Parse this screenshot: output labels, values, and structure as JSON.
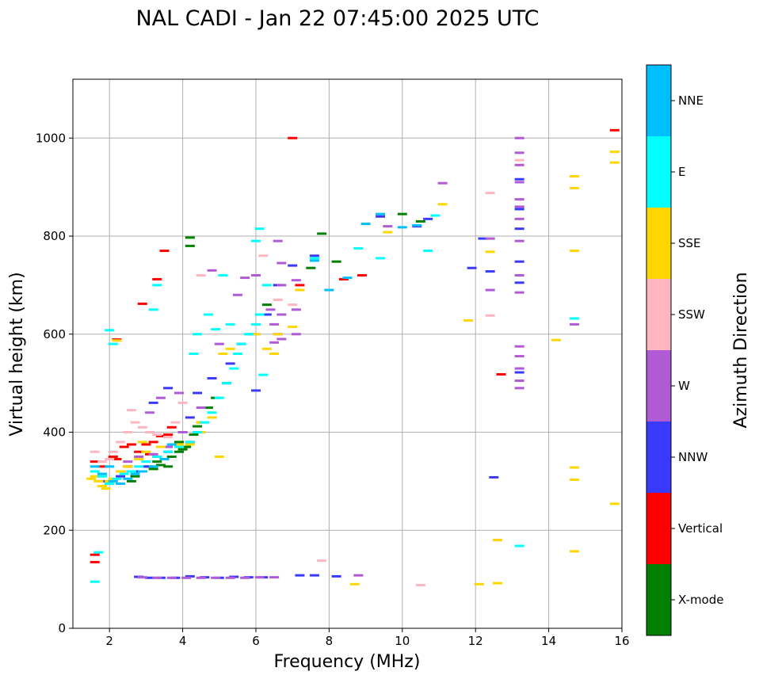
{
  "chart_data": {
    "type": "scatter",
    "title": "NAL CADI - Jan 22 07:45:00 2025 UTC",
    "xlabel": "Frequency (MHz)",
    "ylabel": "Virtual height (km)",
    "xlim": [
      1,
      16
    ],
    "ylim": [
      0,
      1120
    ],
    "xticks": [
      2,
      4,
      6,
      8,
      10,
      12,
      14,
      16
    ],
    "yticks": [
      0,
      200,
      400,
      600,
      800,
      1000
    ],
    "grid": true,
    "colorbar": {
      "title": "Azimuth Direction",
      "categories": [
        "X-mode",
        "Vertical",
        "NNW",
        "W",
        "SSW",
        "SSE",
        "E",
        "NNE"
      ],
      "colors": [
        "#008000",
        "#ff0000",
        "#3a3aff",
        "#b05ad6",
        "#ffb6c1",
        "#ffd700",
        "#00ffff",
        "#00bfff"
      ]
    },
    "series": [
      {
        "name": "X-mode",
        "points": [
          [
            2.6,
            300
          ],
          [
            2.9,
            320
          ],
          [
            3.1,
            330
          ],
          [
            3.3,
            340
          ],
          [
            3.5,
            345
          ],
          [
            3.7,
            350
          ],
          [
            3.9,
            360
          ],
          [
            4.0,
            365
          ],
          [
            4.1,
            370
          ],
          [
            4.3,
            395
          ],
          [
            4.5,
            420
          ],
          [
            4.7,
            450
          ],
          [
            4.9,
            470
          ],
          [
            5.2,
            500
          ],
          [
            3.6,
            330
          ],
          [
            3.9,
            380
          ],
          [
            4.4,
            412
          ],
          [
            2.0,
            295
          ],
          [
            7.5,
            735
          ],
          [
            8.2,
            748
          ],
          [
            4.2,
            780
          ],
          [
            4.2,
            797
          ],
          [
            10.0,
            845
          ],
          [
            10.5,
            830
          ],
          [
            7.8,
            805
          ],
          [
            3.2,
            325
          ],
          [
            3.4,
            333
          ],
          [
            6.3,
            660
          ],
          [
            2.7,
            310
          ]
        ]
      },
      {
        "name": "Vertical",
        "points": [
          [
            1.6,
            340
          ],
          [
            1.8,
            330
          ],
          [
            2.1,
            350
          ],
          [
            2.2,
            345
          ],
          [
            2.4,
            370
          ],
          [
            2.6,
            375
          ],
          [
            2.8,
            360
          ],
          [
            3.0,
            375
          ],
          [
            3.2,
            380
          ],
          [
            3.4,
            392
          ],
          [
            3.6,
            395
          ],
          [
            3.8,
            375
          ],
          [
            4.2,
            380
          ],
          [
            4.3,
            560
          ],
          [
            3.5,
            770
          ],
          [
            3.3,
            712
          ],
          [
            2.9,
            662
          ],
          [
            2.2,
            589
          ],
          [
            7.2,
            700
          ],
          [
            8.4,
            712
          ],
          [
            8.9,
            720
          ],
          [
            12.7,
            518
          ],
          [
            15.8,
            1016
          ],
          [
            7.0,
            1000
          ],
          [
            3.1,
            355
          ],
          [
            1.6,
            150
          ],
          [
            1.6,
            135
          ],
          [
            2.5,
            330
          ],
          [
            3.7,
            410
          ]
        ]
      },
      {
        "name": "NNW",
        "points": [
          [
            1.9,
            300
          ],
          [
            2.3,
            310
          ],
          [
            2.7,
            320
          ],
          [
            3.0,
            330
          ],
          [
            3.3,
            350
          ],
          [
            3.6,
            360
          ],
          [
            4.0,
            400
          ],
          [
            4.2,
            430
          ],
          [
            4.4,
            480
          ],
          [
            4.8,
            510
          ],
          [
            5.3,
            540
          ],
          [
            5.6,
            580
          ],
          [
            5.9,
            600
          ],
          [
            6.3,
            640
          ],
          [
            6.6,
            700
          ],
          [
            7.0,
            740
          ],
          [
            7.6,
            760
          ],
          [
            2.8,
            105
          ],
          [
            3.1,
            103
          ],
          [
            3.4,
            103
          ],
          [
            3.8,
            103
          ],
          [
            4.2,
            106
          ],
          [
            4.6,
            104
          ],
          [
            5.0,
            103
          ],
          [
            5.4,
            105
          ],
          [
            5.8,
            104
          ],
          [
            6.2,
            104
          ],
          [
            7.2,
            108
          ],
          [
            7.6,
            108
          ],
          [
            8.2,
            106
          ],
          [
            9.4,
            840
          ],
          [
            10.4,
            820
          ],
          [
            10.7,
            835
          ],
          [
            12.4,
            728
          ],
          [
            13.2,
            748
          ],
          [
            13.2,
            815
          ],
          [
            13.2,
            855
          ],
          [
            13.2,
            916
          ],
          [
            12.2,
            795
          ],
          [
            12.5,
            308
          ],
          [
            13.2,
            522
          ],
          [
            13.2,
            705
          ],
          [
            11.9,
            735
          ],
          [
            6.0,
            485
          ],
          [
            3.2,
            460
          ],
          [
            3.6,
            490
          ]
        ]
      },
      {
        "name": "W",
        "points": [
          [
            2.5,
            340
          ],
          [
            2.8,
            350
          ],
          [
            3.2,
            355
          ],
          [
            3.6,
            370
          ],
          [
            4.0,
            400
          ],
          [
            4.5,
            450
          ],
          [
            5.0,
            580
          ],
          [
            5.5,
            680
          ],
          [
            6.0,
            720
          ],
          [
            6.4,
            650
          ],
          [
            6.5,
            620
          ],
          [
            6.6,
            600
          ],
          [
            6.7,
            640
          ],
          [
            6.7,
            700
          ],
          [
            6.7,
            745
          ],
          [
            7.1,
            600
          ],
          [
            7.1,
            650
          ],
          [
            7.1,
            710
          ],
          [
            6.5,
            583
          ],
          [
            6.7,
            590
          ],
          [
            2.9,
            104
          ],
          [
            3.3,
            103
          ],
          [
            3.7,
            103
          ],
          [
            4.1,
            103
          ],
          [
            4.5,
            103
          ],
          [
            4.9,
            103
          ],
          [
            5.3,
            103
          ],
          [
            5.7,
            103
          ],
          [
            6.1,
            104
          ],
          [
            6.5,
            104
          ],
          [
            8.8,
            108
          ],
          [
            9.6,
            820
          ],
          [
            11.1,
            908
          ],
          [
            12.4,
            795
          ],
          [
            13.2,
            1000
          ],
          [
            13.2,
            970
          ],
          [
            13.2,
            945
          ],
          [
            13.2,
            875
          ],
          [
            13.2,
            835
          ],
          [
            13.2,
            790
          ],
          [
            13.2,
            720
          ],
          [
            13.2,
            685
          ],
          [
            13.2,
            575
          ],
          [
            13.2,
            555
          ],
          [
            13.2,
            530
          ],
          [
            13.2,
            505
          ],
          [
            13.2,
            490
          ],
          [
            14.7,
            620
          ],
          [
            6.6,
            790
          ],
          [
            4.8,
            730
          ],
          [
            5.7,
            715
          ],
          [
            3.9,
            480
          ],
          [
            3.4,
            470
          ],
          [
            3.1,
            440
          ],
          [
            12.4,
            690
          ],
          [
            13.2,
            910
          ],
          [
            13.2,
            860
          ]
        ]
      },
      {
        "name": "SSW",
        "points": [
          [
            1.6,
            360
          ],
          [
            1.8,
            340
          ],
          [
            2.0,
            345
          ],
          [
            2.1,
            360
          ],
          [
            2.3,
            380
          ],
          [
            2.5,
            400
          ],
          [
            2.7,
            420
          ],
          [
            2.9,
            410
          ],
          [
            3.1,
            400
          ],
          [
            3.3,
            395
          ],
          [
            3.6,
            390
          ],
          [
            3.8,
            420
          ],
          [
            4.0,
            460
          ],
          [
            4.5,
            720
          ],
          [
            6.2,
            760
          ],
          [
            6.6,
            670
          ],
          [
            7.0,
            660
          ],
          [
            7.8,
            138
          ],
          [
            10.5,
            88
          ],
          [
            12.4,
            888
          ],
          [
            12.4,
            638
          ],
          [
            12.6,
            180
          ],
          [
            13.2,
            955
          ],
          [
            14.7,
            632
          ],
          [
            2.4,
            320
          ],
          [
            1.7,
            300
          ],
          [
            2.6,
            445
          ]
        ]
      },
      {
        "name": "SSE",
        "points": [
          [
            1.6,
            310
          ],
          [
            1.7,
            300
          ],
          [
            1.8,
            290
          ],
          [
            1.9,
            285
          ],
          [
            2.0,
            300
          ],
          [
            2.1,
            305
          ],
          [
            2.3,
            320
          ],
          [
            2.5,
            330
          ],
          [
            2.8,
            345
          ],
          [
            3.0,
            360
          ],
          [
            3.4,
            370
          ],
          [
            3.9,
            375
          ],
          [
            4.2,
            375
          ],
          [
            4.5,
            400
          ],
          [
            4.8,
            430
          ],
          [
            5.1,
            560
          ],
          [
            5.3,
            570
          ],
          [
            6.0,
            600
          ],
          [
            6.3,
            570
          ],
          [
            6.5,
            560
          ],
          [
            6.6,
            600
          ],
          [
            7.0,
            615
          ],
          [
            7.2,
            690
          ],
          [
            8.7,
            90
          ],
          [
            9.6,
            808
          ],
          [
            11.1,
            865
          ],
          [
            11.8,
            628
          ],
          [
            12.1,
            90
          ],
          [
            12.4,
            768
          ],
          [
            12.6,
            92
          ],
          [
            12.6,
            180
          ],
          [
            14.2,
            588
          ],
          [
            14.7,
            922
          ],
          [
            14.7,
            898
          ],
          [
            14.7,
            770
          ],
          [
            14.7,
            328
          ],
          [
            14.7,
            303
          ],
          [
            14.7,
            157
          ],
          [
            15.8,
            972
          ],
          [
            15.8,
            950
          ],
          [
            15.8,
            254
          ],
          [
            2.2,
            587
          ],
          [
            4.5,
            420
          ],
          [
            5.0,
            350
          ],
          [
            1.5,
            305
          ],
          [
            2.9,
            380
          ]
        ]
      },
      {
        "name": "E",
        "points": [
          [
            1.6,
            320
          ],
          [
            1.8,
            310
          ],
          [
            2.0,
            295
          ],
          [
            2.2,
            305
          ],
          [
            2.4,
            315
          ],
          [
            2.6,
            320
          ],
          [
            2.8,
            330
          ],
          [
            3.0,
            340
          ],
          [
            3.3,
            350
          ],
          [
            3.6,
            360
          ],
          [
            3.9,
            370
          ],
          [
            4.2,
            380
          ],
          [
            4.4,
            400
          ],
          [
            4.6,
            420
          ],
          [
            4.8,
            440
          ],
          [
            5.0,
            470
          ],
          [
            5.2,
            500
          ],
          [
            5.4,
            530
          ],
          [
            5.5,
            560
          ],
          [
            5.6,
            580
          ],
          [
            5.8,
            600
          ],
          [
            6.0,
            620
          ],
          [
            6.1,
            640
          ],
          [
            6.3,
            700
          ],
          [
            5.3,
            620
          ],
          [
            4.9,
            610
          ],
          [
            4.7,
            640
          ],
          [
            4.4,
            600
          ],
          [
            4.3,
            560
          ],
          [
            5.1,
            720
          ],
          [
            6.0,
            790
          ],
          [
            6.1,
            815
          ],
          [
            3.2,
            650
          ],
          [
            2.0,
            608
          ],
          [
            1.7,
            155
          ],
          [
            1.6,
            95
          ],
          [
            7.6,
            755
          ],
          [
            8.8,
            775
          ],
          [
            9.4,
            755
          ],
          [
            10.7,
            770
          ],
          [
            10.9,
            842
          ],
          [
            13.2,
            168
          ],
          [
            14.7,
            632
          ],
          [
            2.1,
            580
          ],
          [
            6.2,
            517
          ],
          [
            3.3,
            700
          ]
        ]
      },
      {
        "name": "NNE",
        "points": [
          [
            1.6,
            330
          ],
          [
            1.8,
            315
          ],
          [
            2.1,
            300
          ],
          [
            2.3,
            295
          ],
          [
            2.5,
            305
          ],
          [
            2.7,
            315
          ],
          [
            2.9,
            320
          ],
          [
            3.2,
            330
          ],
          [
            3.5,
            345
          ],
          [
            7.6,
            750
          ],
          [
            8.0,
            690
          ],
          [
            8.5,
            715
          ],
          [
            9.0,
            825
          ],
          [
            9.4,
            845
          ],
          [
            10.0,
            818
          ],
          [
            10.4,
            822
          ],
          [
            2.0,
            330
          ],
          [
            3.7,
            375
          ]
        ]
      }
    ]
  }
}
